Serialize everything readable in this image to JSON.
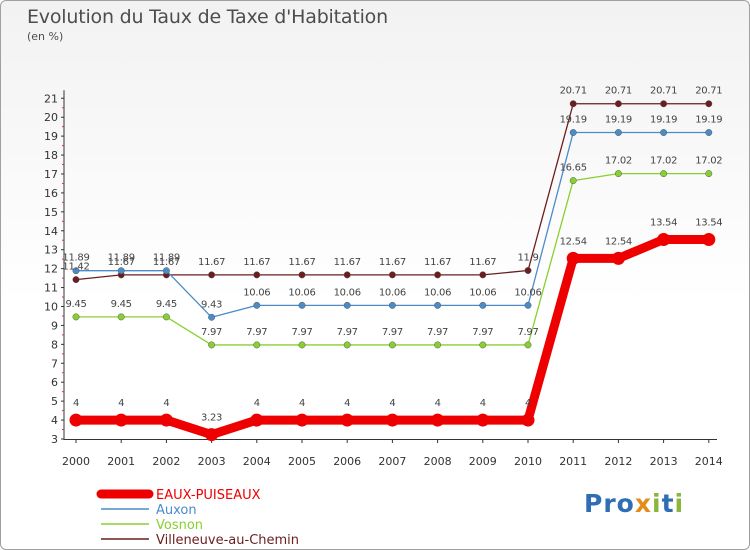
{
  "header": {
    "title": "Evolution du Taux de Taxe d'Habitation",
    "unit": "(en %)"
  },
  "logo": {
    "text": "Proxiti"
  },
  "chart_data": {
    "type": "line",
    "title": "Evolution du Taux de Taxe d'Habitation",
    "subtitle": "(en %)",
    "xlabel": "",
    "ylabel": "",
    "x": [
      "2000",
      "2001",
      "2002",
      "2003",
      "2004",
      "2005",
      "2006",
      "2007",
      "2008",
      "2009",
      "2010",
      "2011",
      "2012",
      "2013",
      "2014"
    ],
    "ylim": [
      3,
      21
    ],
    "yticks": [
      3,
      4,
      5,
      6,
      7,
      8,
      9,
      10,
      11,
      12,
      13,
      14,
      15,
      16,
      17,
      18,
      19,
      20,
      21
    ],
    "grid": false,
    "legend_position": "bottom-left",
    "series": [
      {
        "name": "EAUX-PUISEAUX",
        "color": "#ee0000",
        "values": [
          4,
          4,
          4,
          3.23,
          4,
          4,
          4,
          4,
          4,
          4,
          4,
          12.54,
          12.54,
          13.54,
          13.54
        ],
        "labels": [
          "4",
          "4",
          "4",
          "3.23",
          "4",
          "4",
          "4",
          "4",
          "4",
          "4",
          "4",
          "12.54",
          "12.54",
          "13.54",
          "13.54"
        ]
      },
      {
        "name": "Auxon",
        "color": "#4a8cc8",
        "values": [
          11.89,
          11.89,
          11.89,
          9.43,
          10.06,
          10.06,
          10.06,
          10.06,
          10.06,
          10.06,
          10.06,
          19.19,
          19.19,
          19.19,
          19.19
        ],
        "labels": [
          "11.89",
          "11.89",
          "11.89",
          "9.43",
          "10.06",
          "10.06",
          "10.06",
          "10.06",
          "10.06",
          "10.06",
          "10.06",
          "19.19",
          "19.19",
          "19.19",
          "19.19"
        ]
      },
      {
        "name": "Vosnon",
        "color": "#88d030",
        "values": [
          9.45,
          9.45,
          9.45,
          7.97,
          7.97,
          7.97,
          7.97,
          7.97,
          7.97,
          7.97,
          7.97,
          16.65,
          17.02,
          17.02,
          17.02
        ],
        "labels": [
          "9.45",
          "9.45",
          "9.45",
          "7.97",
          "7.97",
          "7.97",
          "7.97",
          "7.97",
          "7.97",
          "7.97",
          "7.97",
          "16.65",
          "17.02",
          "17.02",
          "17.02"
        ]
      },
      {
        "name": "Villeneuve-au-Chemin",
        "color": "#6b1e1e",
        "values": [
          11.42,
          11.67,
          11.67,
          11.67,
          11.67,
          11.67,
          11.67,
          11.67,
          11.67,
          11.67,
          11.9,
          20.71,
          20.71,
          20.71,
          20.71
        ],
        "labels": [
          "11.42",
          "11.67",
          "11.67",
          "11.67",
          "11.67",
          "11.67",
          "11.67",
          "11.67",
          "11.67",
          "11.67",
          "11.9",
          "20.71",
          "20.71",
          "20.71",
          "20.71"
        ]
      }
    ]
  }
}
